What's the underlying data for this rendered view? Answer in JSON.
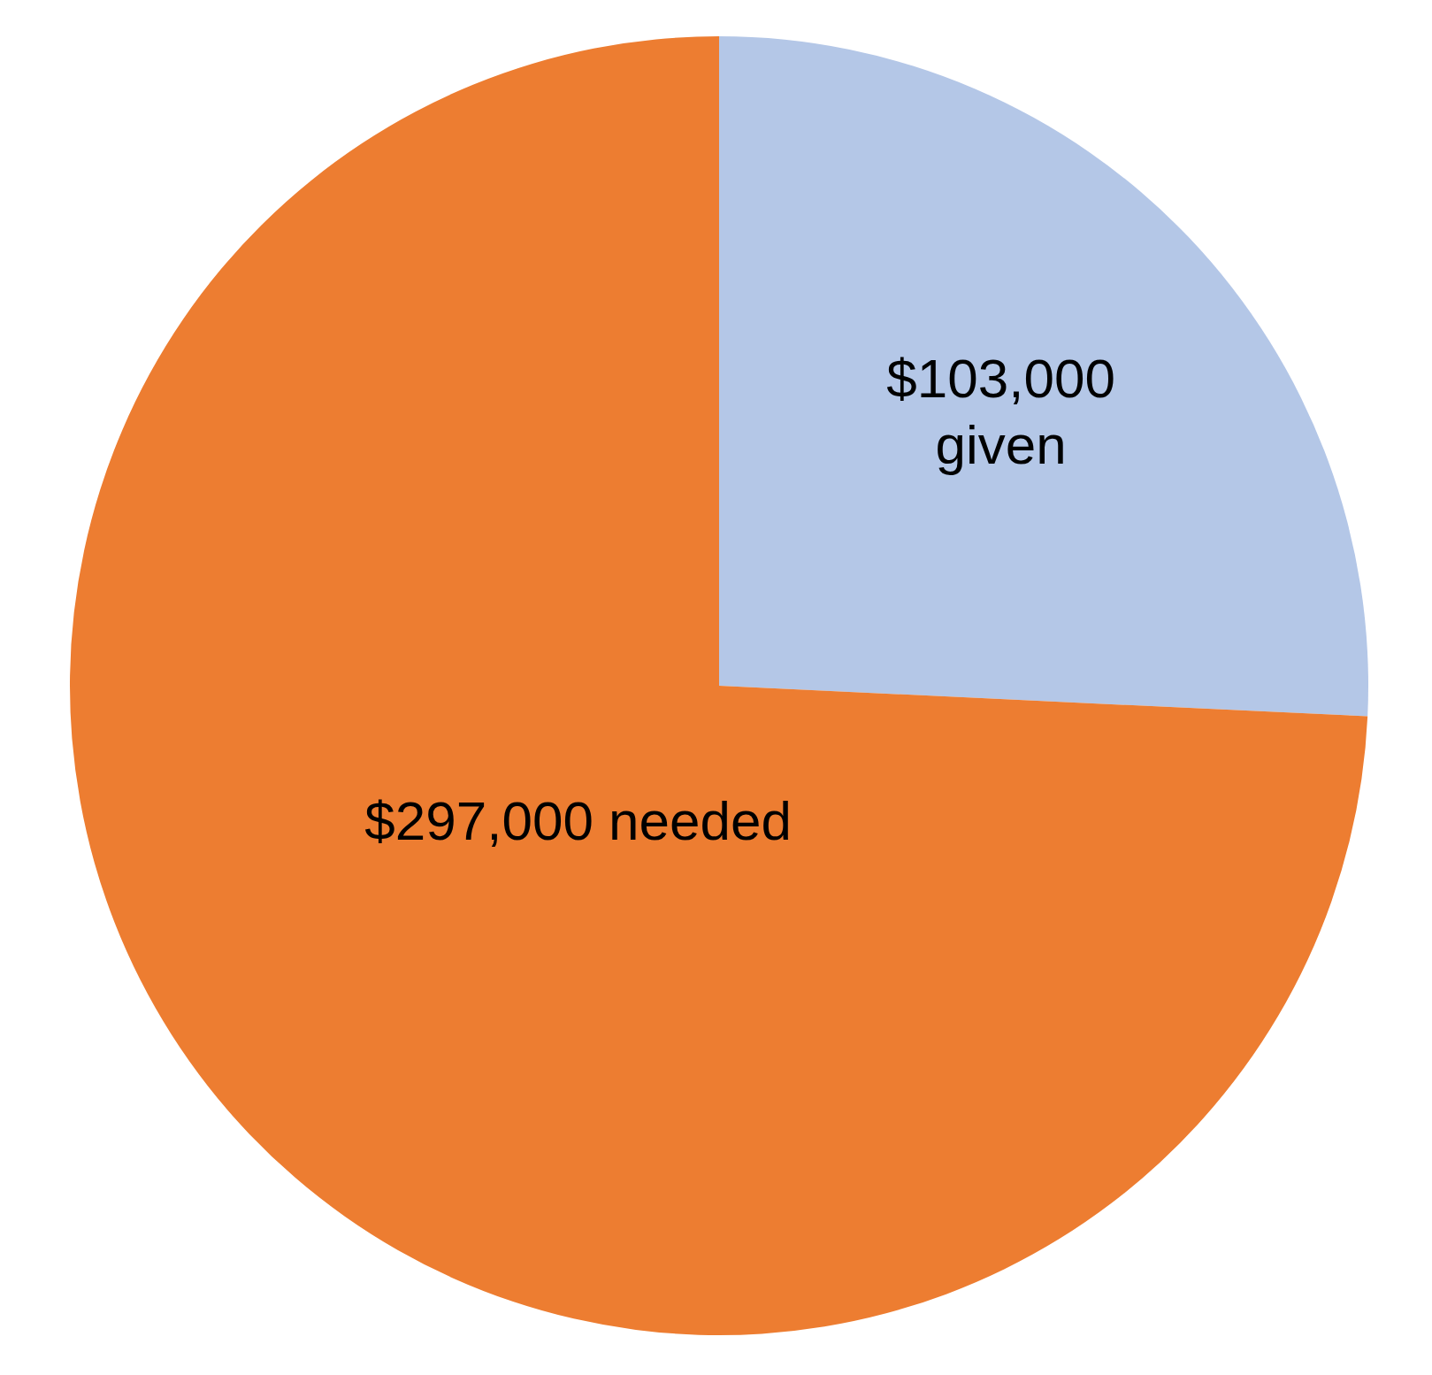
{
  "chart_data": {
    "type": "pie",
    "categories": [
      "given",
      "needed"
    ],
    "values": [
      103000,
      297000
    ],
    "value_labels": [
      "$103,000",
      "$297,000"
    ],
    "colors": [
      "#b4c7e7",
      "#ed7d31"
    ]
  }
}
